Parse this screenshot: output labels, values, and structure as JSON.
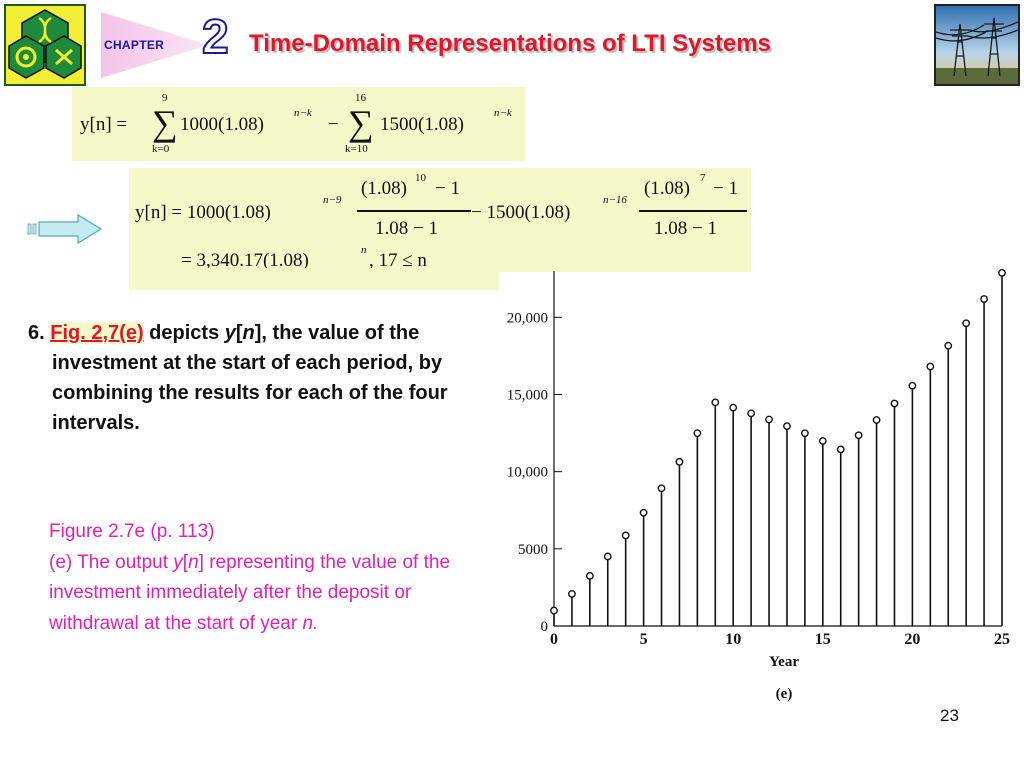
{
  "header": {
    "chapter_label": "CHAPTER",
    "chapter_number": "2",
    "title": "Time-Domain Representations of LTI Systems"
  },
  "equations": {
    "eq1": {
      "lhs": "y[n] =",
      "sum1_upper": "9",
      "sum1_lower": "k=0",
      "term1": "1000(1.08)",
      "exp1": "n−k",
      "minus": "−",
      "sum2_upper": "16",
      "sum2_lower": "k=10",
      "term2": "1500(1.08)",
      "exp2": "n−k"
    },
    "eq2": {
      "lhs": "y[n] = 1000(1.08)",
      "exp_a": "n−9",
      "frac1_num": "(1.08)",
      "frac1_num_exp": "10",
      "frac1_num_tail": "− 1",
      "frac1_den": "1.08 − 1",
      "mid": "− 1500(1.08)",
      "exp_b": "n−16",
      "frac2_num": "(1.08)",
      "frac2_num_exp": "7",
      "frac2_num_tail": "− 1",
      "frac2_den": "1.08 − 1"
    },
    "eq3": {
      "rhs": "= 3,340.17(1.08)",
      "exp": "n",
      "cond": ",   17 ≤ n"
    }
  },
  "item6": {
    "number": "6.",
    "link": "Fig. 2,7(e)",
    "text_a": " depicts ",
    "y": "y",
    "bracket_open": "[",
    "n": "n",
    "text_b": "], the value of the investment at the start of each period, by combining the results for each of the four intervals."
  },
  "caption": {
    "title": "Figure 2.7e  (p. 113)",
    "line_a": "(e) The output ",
    "y": "y",
    "bracket_open": "[",
    "n": "n",
    "line_b": "] representing the value of the investment immediately after the deposit or withdrawal at the start of year ",
    "n_end": "n",
    "period": "."
  },
  "page_number": "23",
  "arrow_icon": "right-arrow-icon",
  "chart_data": {
    "type": "scatter",
    "subtype": "stem",
    "xlabel": "Year",
    "panel_label": "(e)",
    "x": [
      0,
      1,
      2,
      3,
      4,
      5,
      6,
      7,
      8,
      9,
      10,
      11,
      12,
      13,
      14,
      15,
      16,
      17,
      18,
      19,
      20,
      21,
      22,
      23,
      24,
      25
    ],
    "y": [
      1000,
      2080,
      3246,
      4506,
      5867,
      7336,
      8923,
      10637,
      12488,
      14487,
      14146,
      13778,
      13380,
      12950,
      12486,
      11985,
      11444,
      12359,
      13348,
      14416,
      15569,
      16815,
      18160,
      19613,
      21182,
      22877
    ],
    "xlim": [
      0,
      25
    ],
    "ylim": [
      0,
      23000
    ],
    "xticks": [
      "0",
      "5",
      "10",
      "15",
      "20",
      "25"
    ],
    "yticks": [
      "0",
      "5000",
      "10,000",
      "15,000",
      "20,000"
    ],
    "ytick_values": [
      0,
      5000,
      10000,
      15000,
      20000
    ],
    "xtick_values": [
      0,
      5,
      10,
      15,
      20,
      25
    ],
    "grid": false
  }
}
